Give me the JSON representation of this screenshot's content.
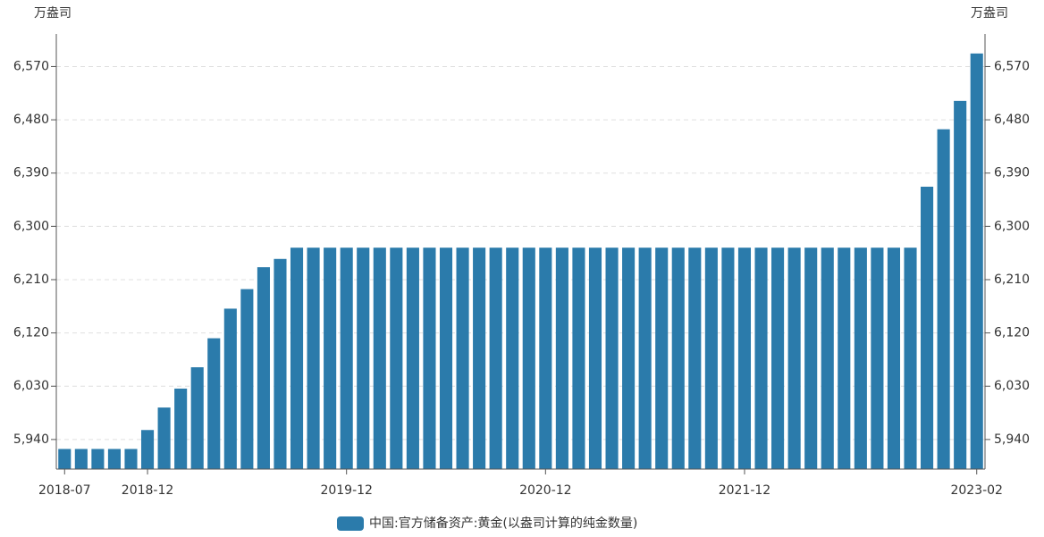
{
  "chart_data": {
    "type": "bar",
    "y_label": "万盎司",
    "legend_name": "中国:官方储备资产:黄金(以盎司计算的纯金数量)",
    "color": "#2b7bab",
    "categories": [
      "2018-07",
      null,
      null,
      null,
      null,
      "2018-12",
      null,
      null,
      null,
      null,
      null,
      null,
      null,
      null,
      null,
      null,
      null,
      "2019-12",
      null,
      null,
      null,
      null,
      null,
      null,
      null,
      null,
      null,
      null,
      null,
      "2020-12",
      null,
      null,
      null,
      null,
      null,
      null,
      null,
      null,
      null,
      null,
      null,
      "2021-12",
      null,
      null,
      null,
      null,
      null,
      null,
      null,
      null,
      null,
      null,
      null,
      null,
      null,
      "2023-02"
    ],
    "values": [
      5924,
      5924,
      5924,
      5924,
      5924,
      5956,
      5994,
      6026,
      6062,
      6111,
      6161,
      6194,
      6231,
      6245,
      6264,
      6264,
      6264,
      6264,
      6264,
      6264,
      6264,
      6264,
      6264,
      6264,
      6264,
      6264,
      6264,
      6264,
      6264,
      6264,
      6264,
      6264,
      6264,
      6264,
      6264,
      6264,
      6264,
      6264,
      6264,
      6264,
      6264,
      6264,
      6264,
      6264,
      6264,
      6264,
      6264,
      6264,
      6264,
      6264,
      6264,
      6264,
      6367,
      6464,
      6512,
      6592
    ],
    "ylim": [
      5890,
      6625
    ],
    "yticks": [
      {
        "value": 5940,
        "label": "5,940"
      },
      {
        "value": 6030,
        "label": "6,030"
      },
      {
        "value": 6120,
        "label": "6,120"
      },
      {
        "value": 6210,
        "label": "6,210"
      },
      {
        "value": 6300,
        "label": "6,300"
      },
      {
        "value": 6390,
        "label": "6,390"
      },
      {
        "value": 6480,
        "label": "6,480"
      },
      {
        "value": 6570,
        "label": "6,570"
      }
    ],
    "grid": true
  }
}
